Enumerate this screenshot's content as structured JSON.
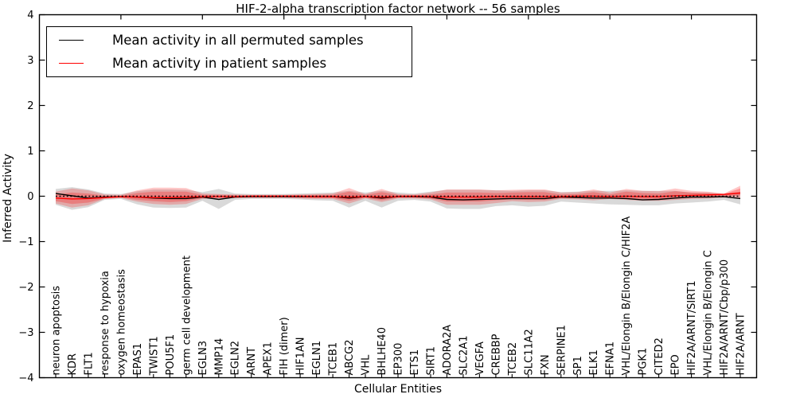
{
  "figure": {
    "title": "HIF-2-alpha transcription factor network -- 56 samples",
    "xlabel": "Cellular Entities",
    "ylabel": "Inferred Activity"
  },
  "legend": {
    "position": "upper left",
    "items": [
      {
        "label": "Mean activity in all permuted samples",
        "color": "#000000",
        "line_style": "solid"
      },
      {
        "label": "Mean activity in patient samples",
        "color": "#ff0000",
        "line_style": "solid"
      }
    ]
  },
  "chart_data": {
    "type": "line",
    "title": "HIF-2-alpha transcription factor network -- 56 samples",
    "xlabel": "Cellular Entities",
    "ylabel": "Inferred Activity",
    "ylim": [
      -4,
      4
    ],
    "yticks": [
      -4,
      -3,
      -2,
      -1,
      0,
      1,
      2,
      3,
      4
    ],
    "grid": false,
    "x_major_tick_every": 5,
    "legend_position": "upper left",
    "reference_line": {
      "y": 0,
      "style": "dotted",
      "color": "#000000"
    },
    "categories": [
      "neuron apoptosis",
      "KDR",
      "FLT1",
      "response to hypoxia",
      "oxygen homeostasis",
      "EPAS1",
      "TWIST1",
      "POU5F1",
      "germ cell development",
      "EGLN3",
      "MMP14",
      "EGLN2",
      "ARNT",
      "APEX1",
      "FIH (dimer)",
      "HIF1AN",
      "EGLN1",
      "TCEB1",
      "ABCG2",
      "VHL",
      "BHLHE40",
      "EP300",
      "ETS1",
      "SIRT1",
      "ADORA2A",
      "SLC2A1",
      "VEGFA",
      "CREBBP",
      "TCEB2",
      "SLC11A2",
      "FXN",
      "SERPINE1",
      "SP1",
      "ELK1",
      "EFNA1",
      "VHL/Elongin B/Elongin C/HIF2A",
      "PGK1",
      "CITED2",
      "EPO",
      "HIF2A/ARNT/SIRT1",
      "VHL/Elongin B/Elongin C",
      "HIF2A/ARNT/Cbp/p300",
      "HIF2A/ARNT"
    ],
    "series": [
      {
        "name": "Mean activity in all permuted samples",
        "color": "#000000",
        "values": [
          0.06,
          0.01,
          -0.04,
          -0.02,
          -0.01,
          -0.02,
          -0.04,
          -0.05,
          -0.05,
          -0.02,
          -0.07,
          -0.02,
          -0.01,
          -0.01,
          -0.01,
          -0.01,
          -0.01,
          -0.01,
          -0.04,
          -0.01,
          -0.04,
          -0.01,
          -0.01,
          -0.02,
          -0.07,
          -0.08,
          -0.07,
          -0.06,
          -0.05,
          -0.05,
          -0.05,
          -0.02,
          -0.03,
          -0.04,
          -0.04,
          -0.05,
          -0.08,
          -0.07,
          -0.04,
          -0.02,
          -0.02,
          -0.01,
          -0.05
        ],
        "band": {
          "upper": [
            0.16,
            0.2,
            0.15,
            0.06,
            0.05,
            0.11,
            0.15,
            0.15,
            0.14,
            0.09,
            0.16,
            0.06,
            0.05,
            0.05,
            0.05,
            0.06,
            0.07,
            0.08,
            0.12,
            0.08,
            0.12,
            0.08,
            0.06,
            0.1,
            0.14,
            0.14,
            0.14,
            0.13,
            0.12,
            0.13,
            0.13,
            0.09,
            0.1,
            0.12,
            0.12,
            0.13,
            0.12,
            0.12,
            0.12,
            0.08,
            0.08,
            0.05,
            0.1
          ],
          "lower": [
            -0.19,
            -0.3,
            -0.24,
            -0.08,
            -0.06,
            -0.18,
            -0.25,
            -0.26,
            -0.25,
            -0.1,
            -0.28,
            -0.08,
            -0.06,
            -0.06,
            -0.06,
            -0.07,
            -0.09,
            -0.1,
            -0.25,
            -0.1,
            -0.25,
            -0.1,
            -0.08,
            -0.12,
            -0.27,
            -0.28,
            -0.28,
            -0.22,
            -0.2,
            -0.23,
            -0.21,
            -0.12,
            -0.14,
            -0.16,
            -0.18,
            -0.19,
            -0.2,
            -0.2,
            -0.16,
            -0.14,
            -0.12,
            -0.08,
            -0.18
          ],
          "color": "#000000",
          "opacity": 0.15
        }
      },
      {
        "name": "Mean activity in patient samples",
        "color": "#ff0000",
        "values": [
          -0.04,
          -0.06,
          -0.05,
          -0.03,
          -0.01,
          -0.02,
          -0.03,
          -0.03,
          -0.02,
          -0.01,
          -0.01,
          -0.01,
          0,
          0,
          0,
          0,
          -0.01,
          -0.01,
          -0.02,
          -0.01,
          -0.02,
          -0.01,
          0,
          -0.01,
          -0.02,
          -0.02,
          -0.02,
          -0.01,
          -0.01,
          -0.01,
          -0.01,
          -0.01,
          0,
          0,
          -0.01,
          0,
          -0.01,
          -0.01,
          0.01,
          0.02,
          0.03,
          0.04,
          0.07
        ],
        "band": {
          "upper": [
            0.1,
            0.17,
            0.13,
            0.04,
            0.03,
            0.13,
            0.19,
            0.19,
            0.18,
            0.06,
            0.05,
            0.04,
            0.03,
            0.03,
            0.03,
            0.04,
            0.05,
            0.06,
            0.18,
            0.05,
            0.16,
            0.05,
            0.04,
            0.08,
            0.15,
            0.15,
            0.15,
            0.13,
            0.14,
            0.15,
            0.15,
            0.08,
            0.09,
            0.15,
            0.08,
            0.16,
            0.12,
            0.11,
            0.17,
            0.12,
            0.1,
            0.06,
            0.23
          ],
          "lower": [
            -0.16,
            -0.25,
            -0.2,
            -0.06,
            -0.04,
            -0.12,
            -0.17,
            -0.19,
            -0.17,
            -0.06,
            -0.05,
            -0.04,
            -0.04,
            -0.04,
            -0.04,
            -0.05,
            -0.06,
            -0.06,
            -0.16,
            -0.05,
            -0.13,
            -0.05,
            -0.05,
            -0.07,
            -0.19,
            -0.19,
            -0.19,
            -0.15,
            -0.11,
            -0.13,
            -0.12,
            -0.06,
            -0.07,
            -0.09,
            -0.06,
            -0.08,
            -0.1,
            -0.1,
            -0.08,
            -0.06,
            -0.05,
            -0.03,
            -0.05
          ],
          "color": "#ff0000",
          "opacity": 0.22
        },
        "band_inner": {
          "upper": [
            0.04,
            0.08,
            0.06,
            0.01,
            0.01,
            0.07,
            0.1,
            0.1,
            0.1,
            0.03,
            0.03,
            0.02,
            0.02,
            0.02,
            0.02,
            0.02,
            0.03,
            0.03,
            0.1,
            0.03,
            0.09,
            0.03,
            0.02,
            0.04,
            0.08,
            0.08,
            0.08,
            0.07,
            0.08,
            0.09,
            0.09,
            0.04,
            0.05,
            0.09,
            0.04,
            0.1,
            0.07,
            0.06,
            0.11,
            0.08,
            0.07,
            0.05,
            0.17
          ],
          "lower": [
            -0.11,
            -0.17,
            -0.14,
            -0.05,
            -0.03,
            -0.08,
            -0.11,
            -0.13,
            -0.11,
            -0.04,
            -0.03,
            -0.03,
            -0.02,
            -0.02,
            -0.02,
            -0.03,
            -0.04,
            -0.04,
            -0.1,
            -0.03,
            -0.09,
            -0.03,
            -0.03,
            -0.05,
            -0.12,
            -0.12,
            -0.12,
            -0.09,
            -0.07,
            -0.08,
            -0.08,
            -0.04,
            -0.04,
            -0.05,
            -0.04,
            -0.05,
            -0.06,
            -0.06,
            -0.04,
            -0.03,
            -0.02,
            -0.01,
            0.02
          ],
          "color": "#ff0000",
          "opacity": 0.25
        }
      }
    ]
  }
}
